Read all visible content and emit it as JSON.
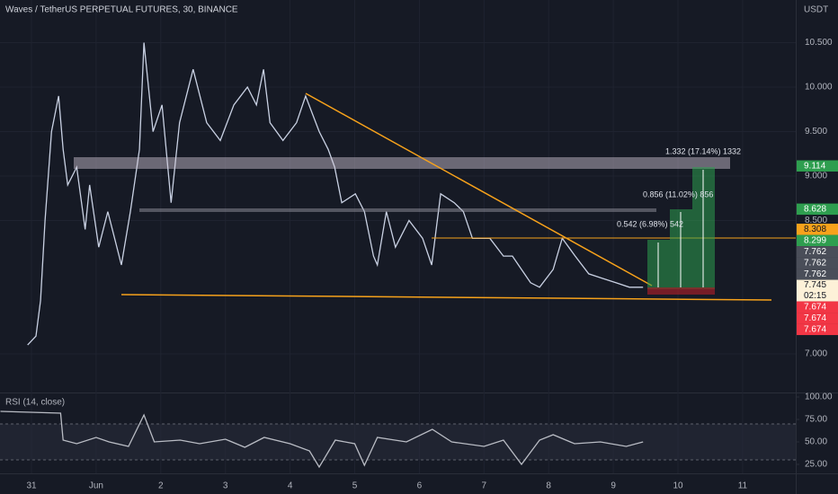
{
  "chart_data": [
    {
      "type": "line",
      "title": "Waves / TetherUS PERPETUAL FUTURES, 30, BINANCE",
      "unit": "USDT",
      "color": "#c9d1e3",
      "x": [
        -0.06,
        0.07,
        0.14,
        0.21,
        0.31,
        0.42,
        0.49,
        0.56,
        0.7,
        0.83,
        0.9,
        1.04,
        1.18,
        1.39,
        1.53,
        1.67,
        1.74,
        1.88,
        2.02,
        2.16,
        2.29,
        2.5,
        2.71,
        2.92,
        3.13,
        3.34,
        3.48,
        3.59,
        3.69,
        3.89,
        4.1,
        4.24,
        4.45,
        4.59,
        4.69,
        4.8,
        5.01,
        5.15,
        5.29,
        5.35,
        5.49,
        5.63,
        5.84,
        6.05,
        6.19,
        6.33,
        6.54,
        6.68,
        6.82,
        7.09,
        7.3,
        7.44,
        7.58,
        7.72,
        7.86,
        8.07,
        8.21,
        8.41,
        8.62,
        8.83,
        9.04,
        9.25,
        9.46
      ],
      "values": [
        7.1,
        7.2,
        7.6,
        8.5,
        9.5,
        9.9,
        9.3,
        8.9,
        9.1,
        8.4,
        8.9,
        8.2,
        8.6,
        8.0,
        8.6,
        9.3,
        10.5,
        9.5,
        9.8,
        8.7,
        9.6,
        10.2,
        9.6,
        9.4,
        9.8,
        10.0,
        9.8,
        10.2,
        9.6,
        9.4,
        9.6,
        9.9,
        9.5,
        9.3,
        9.1,
        8.7,
        8.8,
        8.6,
        8.1,
        8.0,
        8.6,
        8.2,
        8.5,
        8.3,
        8.0,
        8.8,
        8.7,
        8.6,
        8.3,
        8.3,
        8.1,
        8.1,
        7.95,
        7.8,
        7.75,
        7.95,
        8.3,
        8.1,
        7.9,
        7.85,
        7.8,
        7.75,
        7.75
      ],
      "xlim": [
        -0.487,
        11.822
      ],
      "ylim": [
        6.566,
        10.98
      ],
      "xticks": [
        {
          "value": 0,
          "label": "31"
        },
        {
          "value": 1,
          "label": "Jun"
        },
        2,
        3,
        4,
        5,
        6,
        7,
        8,
        9,
        10,
        11
      ],
      "yticks": [
        {
          "value": 10.5,
          "label": "10.500"
        },
        {
          "value": 10,
          "label": "10.000"
        },
        {
          "value": 9.5,
          "label": "9.500"
        },
        {
          "value": 9,
          "label": "9.000"
        },
        {
          "value": 8.5,
          "label": "8.500"
        },
        {
          "value": 7,
          "label": "7.000"
        }
      ],
      "grid": true,
      "price_labels": [
        {
          "value": 9.114,
          "label": "9.114",
          "color": "#2e9e4f",
          "text_color": "#ffffff"
        },
        {
          "value": 8.628,
          "label": "8.628",
          "color": "#2e9e4f",
          "text_color": "#ffffff"
        },
        {
          "value": 8.308,
          "label": "8.308",
          "color": "#f7a21b",
          "text_color": "#131722"
        },
        {
          "value": 8.299,
          "label": "8.299",
          "color": "#2e9e4f",
          "text_color": "#ffffff"
        },
        {
          "value": 7.762,
          "label": "7.762",
          "color": "#4a4e59",
          "text_color": "#ffffff"
        },
        {
          "value": 7.762,
          "label": "7.762",
          "color": "#4a4e59",
          "text_color": "#ffffff"
        },
        {
          "value": 7.762,
          "label": "7.762",
          "color": "#4a4e59",
          "text_color": "#ffffff"
        },
        {
          "value": 7.745,
          "label": "7.745",
          "countdown": "02:15",
          "color": "#fdf1d8",
          "text_color": "#131722"
        },
        {
          "value": 7.674,
          "label": "7.674",
          "color": "#f23645",
          "text_color": "#ffffff"
        },
        {
          "value": 7.674,
          "label": "7.674",
          "color": "#f23645",
          "text_color": "#ffffff"
        },
        {
          "value": 7.674,
          "label": "7.674",
          "color": "#f23645",
          "text_color": "#ffffff"
        }
      ],
      "annotations": [
        "1.332 (17.14%) 1332",
        "0.856 (11.02%) 856",
        "0.542 (6.98%) 542"
      ]
    },
    {
      "type": "line",
      "title": "RSI (14, close)",
      "color": "#b9bcc4",
      "x": [
        -0.48,
        0.45,
        0.49,
        0.7,
        1.0,
        1.2,
        1.5,
        1.74,
        1.9,
        2.3,
        2.6,
        3.0,
        3.3,
        3.6,
        4.0,
        4.3,
        4.45,
        4.7,
        5.0,
        5.15,
        5.35,
        5.8,
        6.2,
        6.5,
        7.0,
        7.3,
        7.58,
        7.86,
        8.07,
        8.4,
        8.8,
        9.2,
        9.46
      ],
      "values": [
        84,
        82,
        52,
        48,
        55,
        50,
        45,
        80,
        50,
        52,
        48,
        53,
        44,
        55,
        48,
        40,
        22,
        52,
        48,
        24,
        55,
        50,
        64,
        50,
        45,
        52,
        25,
        52,
        58,
        48,
        50,
        45,
        50
      ],
      "ylim": [
        15,
        104
      ],
      "yticks": [
        {
          "value": 100,
          "label": "100.00"
        },
        {
          "value": 75,
          "label": "75.00"
        },
        {
          "value": 50,
          "label": "50.00"
        },
        {
          "value": 25,
          "label": "25.00"
        }
      ],
      "bands": [
        70,
        30
      ]
    }
  ]
}
